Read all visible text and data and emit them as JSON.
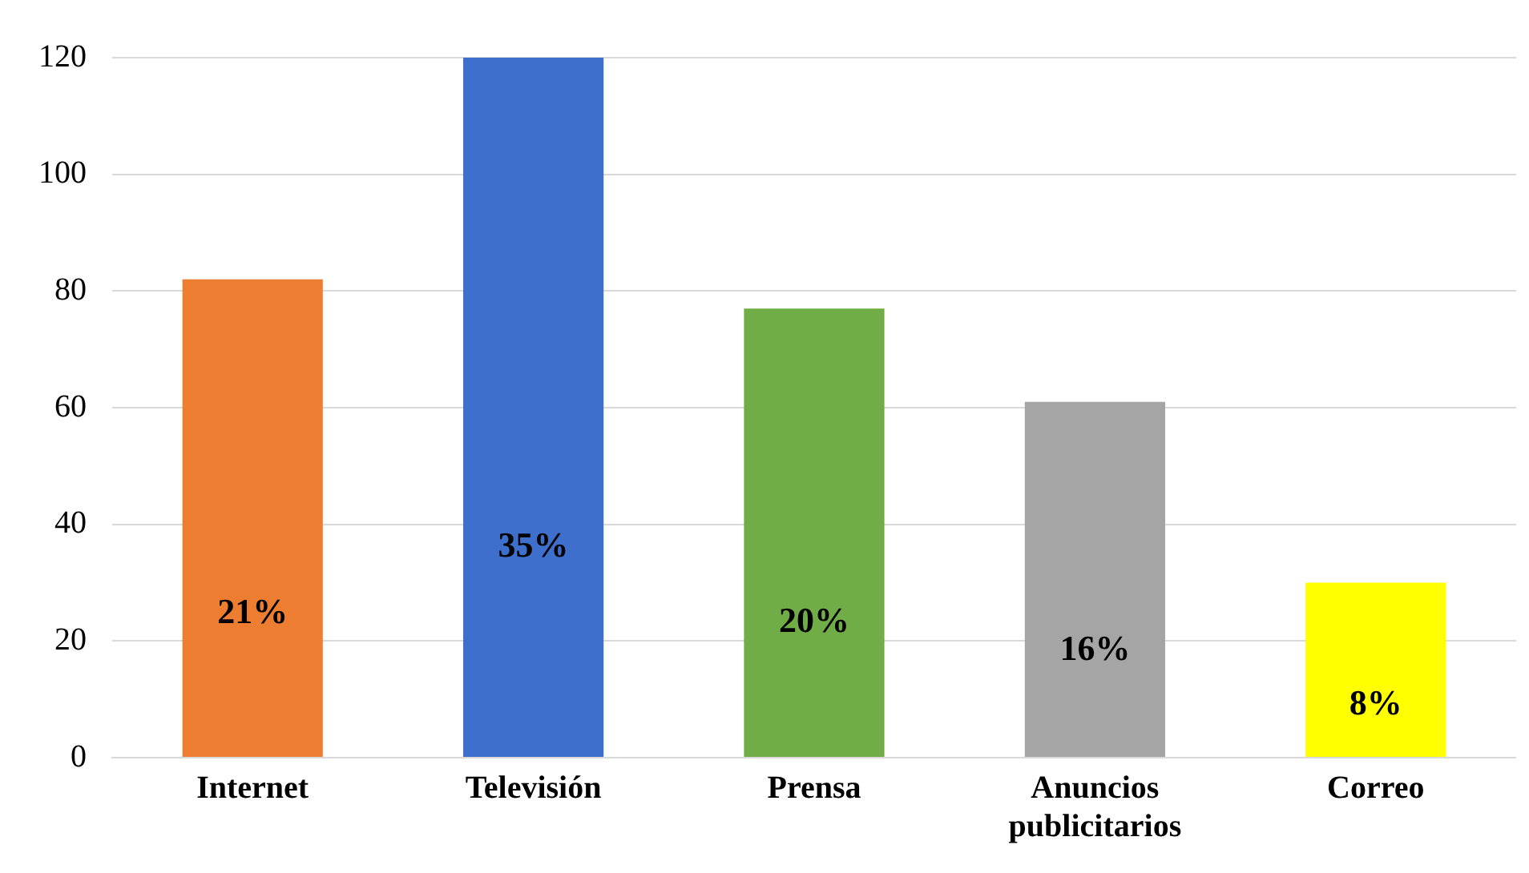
{
  "chart_data": {
    "type": "bar",
    "categories": [
      "Internet",
      "Televisión",
      "Prensa",
      "Anuncios publicitarios",
      "Correo"
    ],
    "values": [
      82,
      120,
      77,
      61,
      30
    ],
    "colors": [
      "#ed7d31",
      "#3f6fcc",
      "#70ad47",
      "#a5a5a5",
      "#ffff00"
    ],
    "annotations": [
      "21%",
      "35%",
      "20%",
      "16%",
      "8%"
    ],
    "ylim": [
      0,
      120
    ],
    "yticks": [
      0,
      20,
      40,
      60,
      80,
      100,
      120
    ],
    "grid": "y",
    "legend": false
  }
}
